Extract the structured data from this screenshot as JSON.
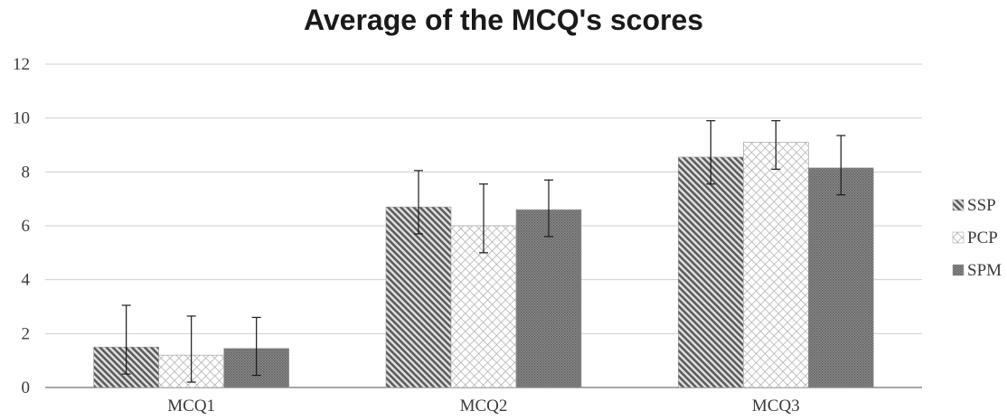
{
  "chart_data": {
    "type": "bar",
    "title": "Average of the MCQ's scores",
    "xlabel": "",
    "ylabel": "",
    "categories": [
      "MCQ1",
      "MCQ2",
      "MCQ3"
    ],
    "ylim": [
      0,
      12
    ],
    "yticks": [
      0,
      2,
      4,
      6,
      8,
      10,
      12
    ],
    "grid": true,
    "legend_position": "right",
    "series": [
      {
        "name": "SSP",
        "values": [
          1.5,
          6.7,
          8.55
        ],
        "error_low": [
          0.5,
          5.7,
          7.55
        ],
        "error_high": [
          3.05,
          8.05,
          9.9
        ],
        "pattern": "diagonal-hatch",
        "color": "#6e6e6e"
      },
      {
        "name": "PCP",
        "values": [
          1.2,
          6.0,
          9.1
        ],
        "error_low": [
          0.2,
          5.0,
          8.1
        ],
        "error_high": [
          2.65,
          7.55,
          9.9
        ],
        "pattern": "crosshatch",
        "color": "#b5b5b5"
      },
      {
        "name": "SPM",
        "values": [
          1.45,
          6.6,
          8.15
        ],
        "error_low": [
          0.45,
          5.6,
          7.15
        ],
        "error_high": [
          2.6,
          7.7,
          9.35
        ],
        "pattern": "dense-dots",
        "color": "#7d7d7d"
      }
    ]
  }
}
